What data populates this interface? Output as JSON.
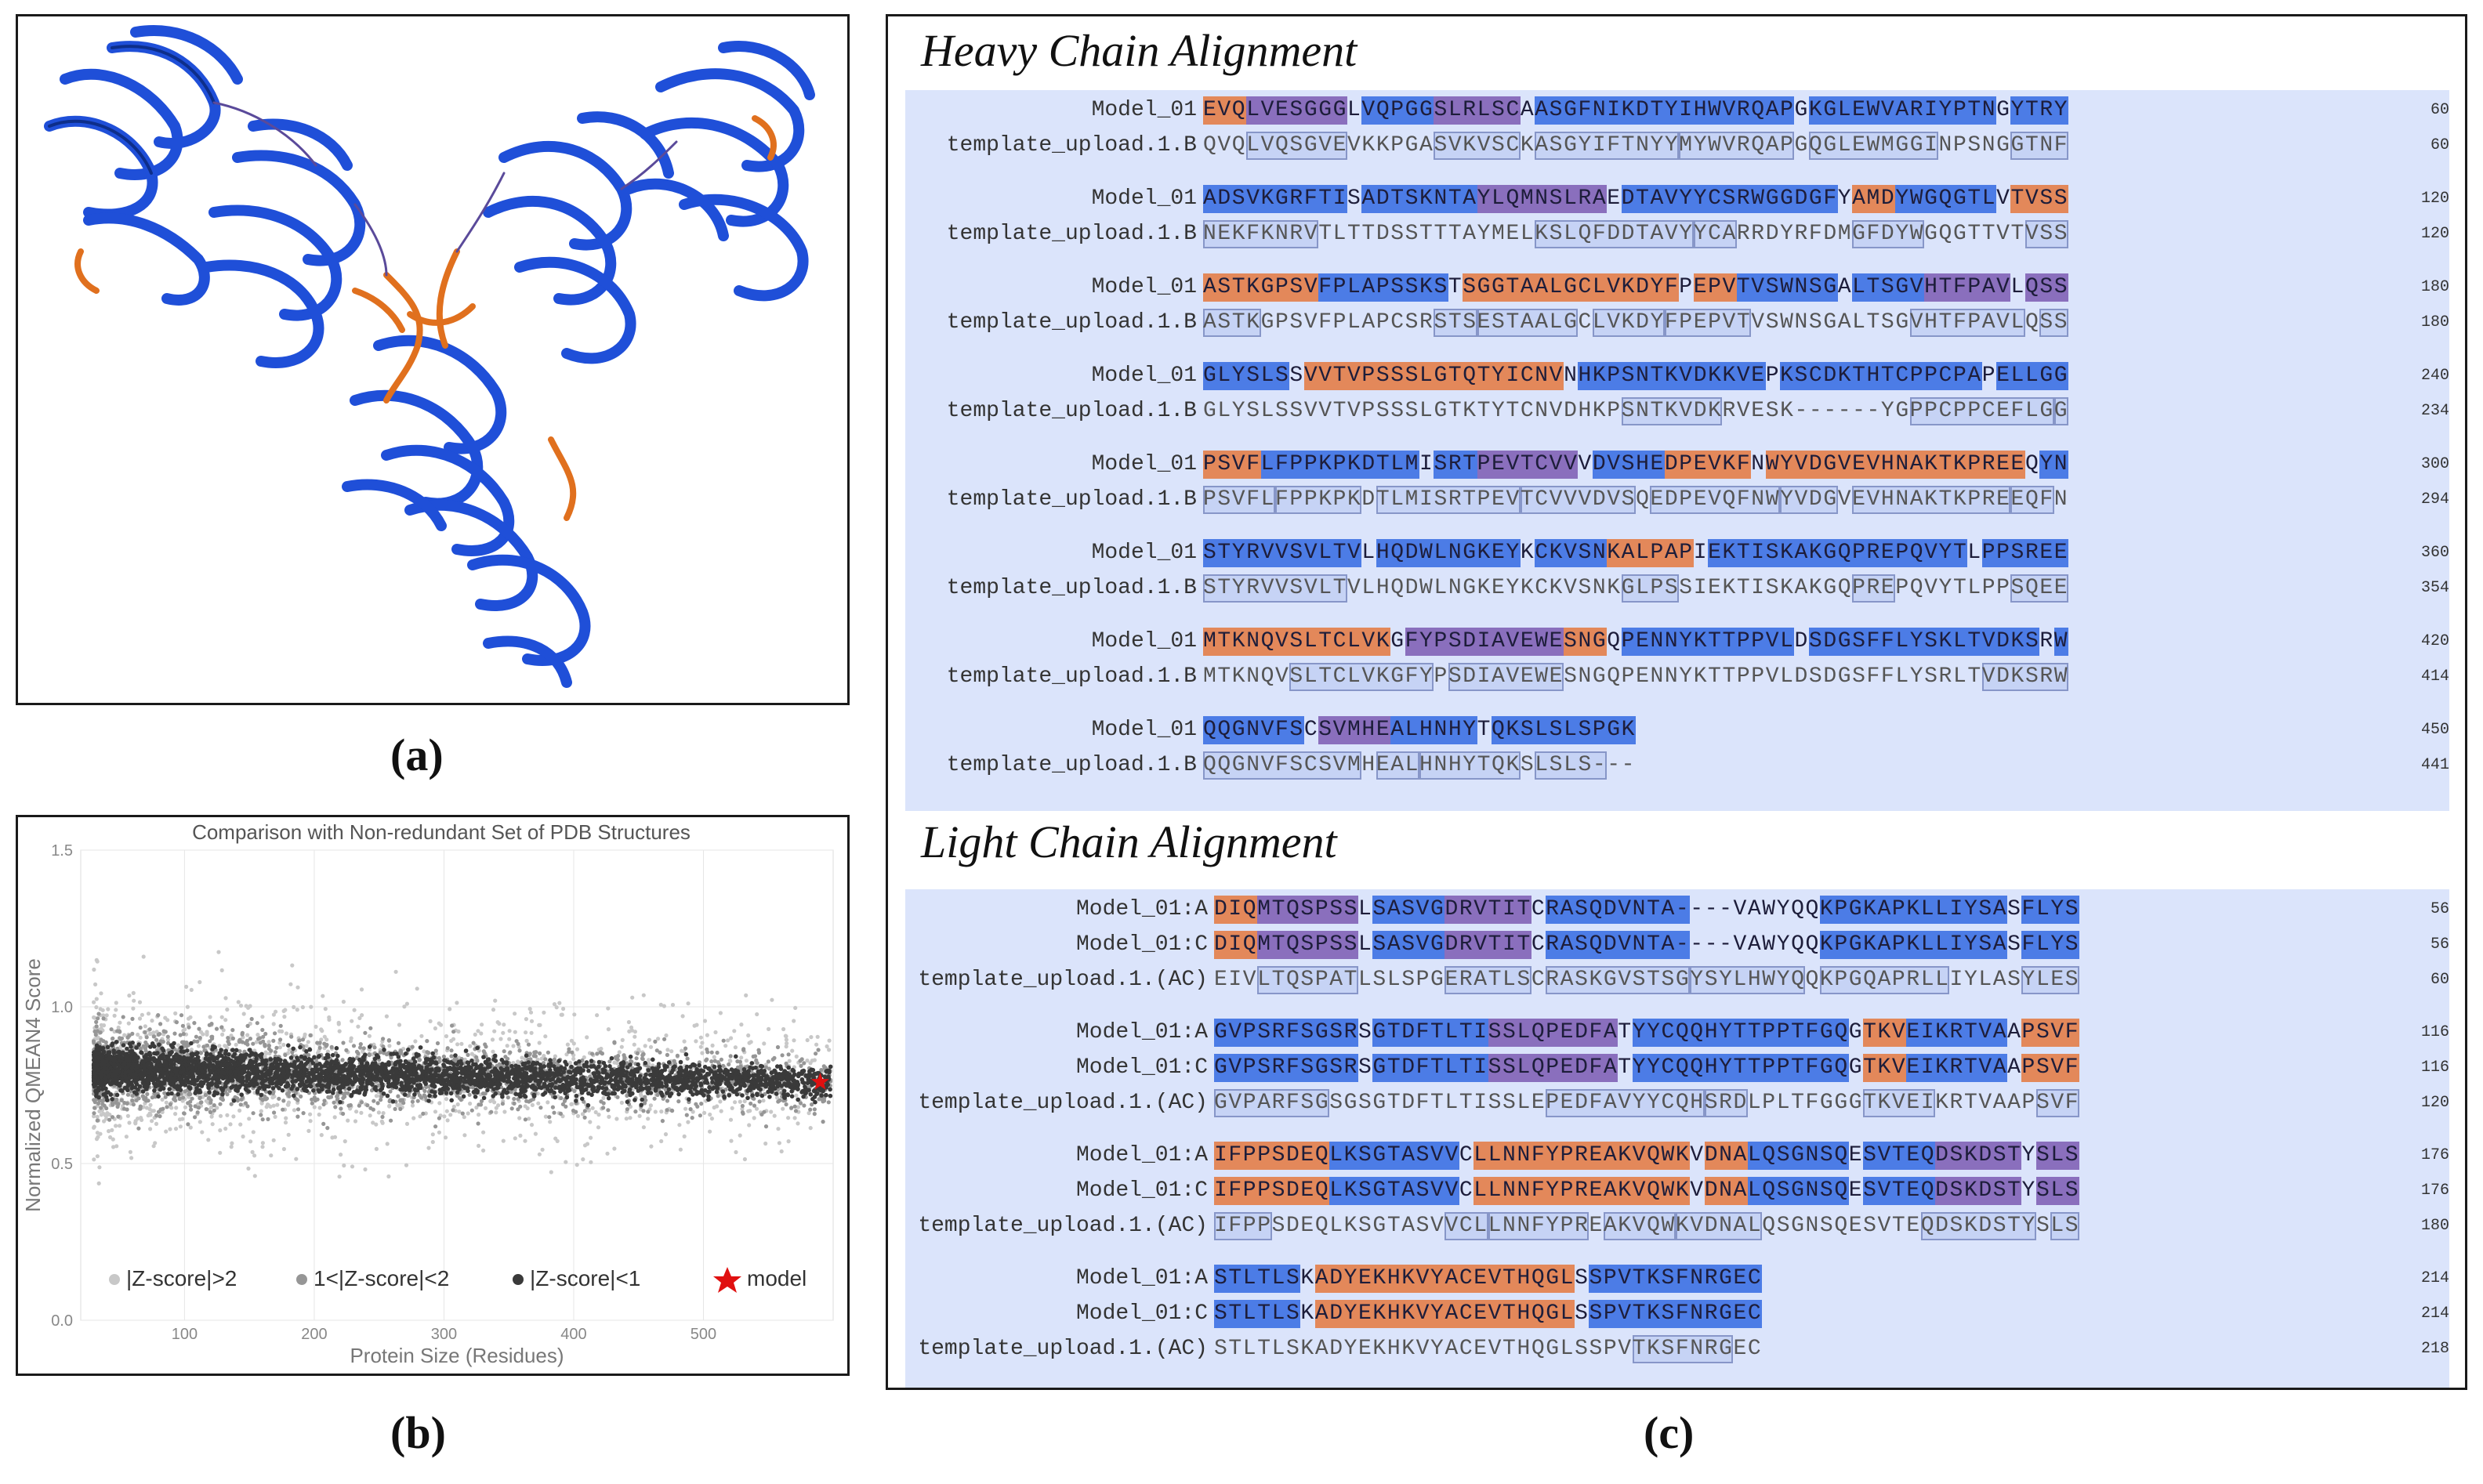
{
  "panel_a": {
    "caption": "(a)"
  },
  "panel_b": {
    "caption": "(b)",
    "chart_data": {
      "type": "scatter",
      "title": "Comparison with Non-redundant Set of PDB Structures",
      "xlabel": "Protein Size (Residues)",
      "ylabel": "Normalized QMEAN4 Score",
      "xlim": [
        20,
        600
      ],
      "ylim": [
        0.0,
        1.5
      ],
      "xticks": [
        "100",
        "200",
        "300",
        "400",
        "500"
      ],
      "yticks": [
        "0.0",
        "0.5",
        "1.0",
        "1.5"
      ],
      "legend_placement": "bottom",
      "series": [
        {
          "name": "|Z-score|>2",
          "color": "#c8c8c8"
        },
        {
          "name": "1<|Z-score|<2",
          "color": "#969696"
        },
        {
          "name": "|Z-score|<1",
          "color": "#3a3a3a"
        },
        {
          "name": "model",
          "color": "#e01010",
          "marker": "star",
          "points": [
            [
              590,
              0.76
            ]
          ]
        }
      ]
    }
  },
  "panel_c": {
    "caption": "(c)",
    "heavy": {
      "title": "Heavy Chain Alignment",
      "blocks": [
        {
          "rows": [
            {
              "name": "Model_01",
              "seq": "EVQLVESGGGLVQPGGSLRLSCAASGFNIKDTYIHWVRQAPGKGLEWVARIYPTNGYTRY",
              "num": "60"
            },
            {
              "name": "template_upload.1.B",
              "seq": "QVQLVQSGVEVKKPGASVKVSCKASGYIFTNYYMYWVRQAPGQGLEWMGGINPSNGGTNF",
              "num": "60"
            }
          ]
        },
        {
          "rows": [
            {
              "name": "Model_01",
              "seq": "ADSVKGRFTISADTSKNTAYLQMNSLRAEDTAVYYCSRWGGDGFYAMDYWGQGTLVTVSS",
              "num": "120"
            },
            {
              "name": "template_upload.1.B",
              "seq": "NEKFKNRVTLTTDSSTTTAYMELKSLQFDDTAVYYCARRDYRFDMGFDYWGQGTTVTVSS",
              "num": "120"
            }
          ]
        },
        {
          "rows": [
            {
              "name": "Model_01",
              "seq": "ASTKGPSVFPLAPSSKSTSGGTAALGCLVKDYFPEPVTVSWNSGALTSGVHTFPAVLQSS",
              "num": "180"
            },
            {
              "name": "template_upload.1.B",
              "seq": "ASTKGPSVFPLAPCSRSTSESTAALGCLVKDYFPEPVTVSWNSGALTSGVHTFPAVLQSS",
              "num": "180"
            }
          ]
        },
        {
          "rows": [
            {
              "name": "Model_01",
              "seq": "GLYSLSSVVTVPSSSLGTQTYICNVNHKPSNTKVDKKVEPKSCDKTHTCPPCPAPELLGG",
              "num": "240"
            },
            {
              "name": "template_upload.1.B",
              "seq": "GLYSLSSVVTVPSSSLGTKTYTCNVDHKPSNTKVDKRVESK------YGPPCPPCEFLGG",
              "num": "234"
            }
          ]
        },
        {
          "rows": [
            {
              "name": "Model_01",
              "seq": "PSVFLFPPKPKDTLMISRTPEVTCVVVDVSHEDPEVKFNWYVDGVEVHNAKTKPREEQYN",
              "num": "300"
            },
            {
              "name": "template_upload.1.B",
              "seq": "PSVFLFPPKPKDTLMISRTPEVTCVVVDVSQEDPEVQFNWYVDGVEVHNAKTKPREEQFN",
              "num": "294"
            }
          ]
        },
        {
          "rows": [
            {
              "name": "Model_01",
              "seq": "STYRVVSVLTVLHQDWLNGKEYKCKVSNKALPAPIEKTISKAKGQPREPQVYTLPPSREE",
              "num": "360"
            },
            {
              "name": "template_upload.1.B",
              "seq": "STYRVVSVLTVLHQDWLNGKEYKCKVSNKGLPSSIEKTISKAKGQPREPQVYTLPPSQEE",
              "num": "354"
            }
          ]
        },
        {
          "rows": [
            {
              "name": "Model_01",
              "seq": "MTKNQVSLTCLVKGFYPSDIAVEWESNGQPENNYKTTPPVLDSDGSFFLYSKLTVDKSRW",
              "num": "420"
            },
            {
              "name": "template_upload.1.B",
              "seq": "MTKNQVSLTCLVKGFYPSDIAVEWESNGQPENNYKTTPPVLDSDGSFFLYSRLTVDKSRW",
              "num": "414"
            }
          ]
        },
        {
          "rows": [
            {
              "name": "Model_01",
              "seq": "QQGNVFSCSVMHEALHNHYTQKSLSLSPGK",
              "num": "450"
            },
            {
              "name": "template_upload.1.B",
              "seq": "QQGNVFSCSVMHEALHNHYTQKSLSLS---",
              "num": "441"
            }
          ]
        }
      ]
    },
    "light": {
      "title": "Light Chain Alignment",
      "blocks": [
        {
          "rows": [
            {
              "name": "Model_01:A",
              "seq": "DIQMTQSPSSLSASVGDRVTITCRASQDVNTA----VAWYQQKPGKAPKLLIYSASFLYS",
              "num": "56"
            },
            {
              "name": "Model_01:C",
              "seq": "DIQMTQSPSSLSASVGDRVTITCRASQDVNTA----VAWYQQKPGKAPKLLIYSASFLYS",
              "num": "56"
            },
            {
              "name": "template_upload.1.(AC)",
              "seq": "EIVLTQSPATLSLSPGERATLSCRASKGVSTSGYSYLHWYQQKPGQAPRLLIYLASYLES",
              "num": "60"
            }
          ]
        },
        {
          "rows": [
            {
              "name": "Model_01:A",
              "seq": "GVPSRFSGSRSGTDFTLTISSLQPEDFATYYCQQHYTTPPTFGQGTKVEIKRTVAAPSVF",
              "num": "116"
            },
            {
              "name": "Model_01:C",
              "seq": "GVPSRFSGSRSGTDFTLTISSLQPEDFATYYCQQHYTTPPTFGQGTKVEIKRTVAAPSVF",
              "num": "116"
            },
            {
              "name": "template_upload.1.(AC)",
              "seq": "GVPARFSGSGSGTDFTLTISSLEPEDFAVYYCQHSRDLPLTFGGGTKVEIKRTVAAPSVF",
              "num": "120"
            }
          ]
        },
        {
          "rows": [
            {
              "name": "Model_01:A",
              "seq": "IFPPSDEQLKSGTASVVCLLNNFYPREAKVQWKVDNALQSGNSQESVTEQDSKDSTYSLS",
              "num": "176"
            },
            {
              "name": "Model_01:C",
              "seq": "IFPPSDEQLKSGTASVVCLLNNFYPREAKVQWKVDNALQSGNSQESVTEQDSKDSTYSLS",
              "num": "176"
            },
            {
              "name": "template_upload.1.(AC)",
              "seq": "IFPPSDEQLKSGTASVVCLLNNFYPREAKVQWKVDNALQSGNSQESVTEQDSKDSTYSLS",
              "num": "180"
            }
          ]
        },
        {
          "rows": [
            {
              "name": "Model_01:A",
              "seq": "STLTLSKADYEKHKVYACEVTHQGLSSPVTKSFNRGEC",
              "num": "214"
            },
            {
              "name": "Model_01:C",
              "seq": "STLTLSKADYEKHKVYACEVTHQGLSSPVTKSFNRGEC",
              "num": "214"
            },
            {
              "name": "template_upload.1.(AC)",
              "seq": "STLTLSKADYEKHKVYACEVTHQGLSSPVTKSFNRGEC",
              "num": "218"
            }
          ]
        }
      ]
    }
  }
}
